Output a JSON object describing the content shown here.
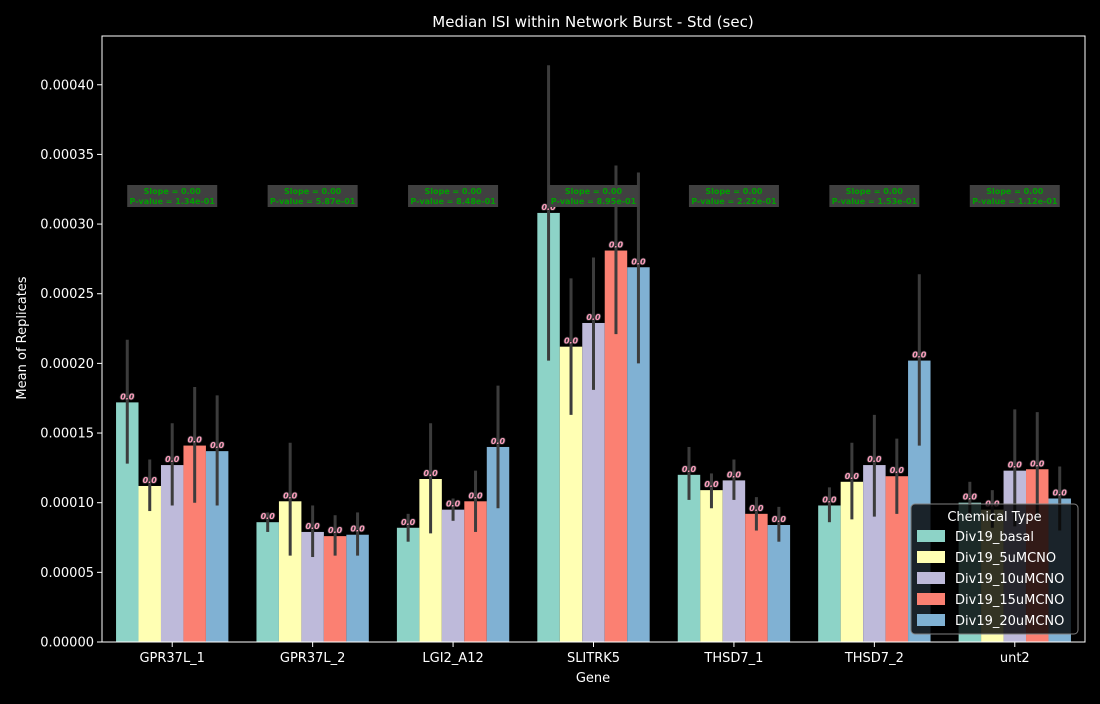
{
  "chart_data": {
    "type": "bar",
    "title": "Median ISI within Network Burst - Std (sec)",
    "xlabel": "Gene",
    "ylabel": "Mean of Replicates",
    "ylim": [
      0,
      0.000435
    ],
    "yticks": [
      "0.00000",
      "0.00005",
      "0.00010",
      "0.00015",
      "0.00020",
      "0.00025",
      "0.00030",
      "0.00035",
      "0.00040"
    ],
    "grid": false,
    "categories": [
      "GPR37L_1",
      "GPR37L_2",
      "LGI2_A12",
      "SLITRK5",
      "THSD7_1",
      "THSD7_2",
      "unt2"
    ],
    "legend": {
      "title": "Chemical Type",
      "position": "lower-right"
    },
    "bar_label": "0.0",
    "series": [
      {
        "name": "Div19_basal",
        "color": "#8dd3c7",
        "values": [
          0.000172,
          8.6e-05,
          8.2e-05,
          0.000308,
          0.00012,
          9.8e-05,
          0.0001
        ],
        "err_low": [
          0.000128,
          7.9e-05,
          7.2e-05,
          0.000202,
          0.000102,
          8.6e-05,
          8.7e-05
        ],
        "err_high": [
          0.000217,
          9.3e-05,
          9.2e-05,
          0.000414,
          0.00014,
          0.000111,
          0.000115
        ]
      },
      {
        "name": "Div19_5uMCNO",
        "color": "#ffffb3",
        "values": [
          0.000112,
          0.000101,
          0.000117,
          0.000212,
          0.000109,
          0.000115,
          9.5e-05
        ],
        "err_low": [
          9.4e-05,
          6.2e-05,
          7.8e-05,
          0.000163,
          9.6e-05,
          8.8e-05,
          8.2e-05
        ],
        "err_high": [
          0.000131,
          0.000143,
          0.000157,
          0.000261,
          0.000121,
          0.000143,
          0.000109
        ]
      },
      {
        "name": "Div19_10uMCNO",
        "color": "#bebada",
        "values": [
          0.000127,
          7.9e-05,
          9.5e-05,
          0.000229,
          0.000116,
          0.000127,
          0.000123
        ],
        "err_low": [
          9.8e-05,
          6.1e-05,
          8.7e-05,
          0.000181,
          0.000102,
          9e-05,
          8.3e-05
        ],
        "err_high": [
          0.000157,
          9.8e-05,
          0.000103,
          0.000276,
          0.000131,
          0.000163,
          0.000167
        ]
      },
      {
        "name": "Div19_15uMCNO",
        "color": "#fb8072",
        "values": [
          0.000141,
          7.6e-05,
          0.000101,
          0.000281,
          9.2e-05,
          0.000119,
          0.000124
        ],
        "err_low": [
          0.0001,
          6.2e-05,
          7.9e-05,
          0.000221,
          8e-05,
          9.2e-05,
          8.7e-05
        ],
        "err_high": [
          0.000183,
          9.1e-05,
          0.000123,
          0.000342,
          0.000104,
          0.000146,
          0.000165
        ]
      },
      {
        "name": "Div19_20uMCNO",
        "color": "#80b1d3",
        "values": [
          0.000137,
          7.7e-05,
          0.00014,
          0.000269,
          8.4e-05,
          0.000202,
          0.000103
        ],
        "err_low": [
          9.8e-05,
          6.2e-05,
          9.6e-05,
          0.0002,
          7.2e-05,
          0.000141,
          8e-05
        ],
        "err_high": [
          0.000177,
          9.3e-05,
          0.000184,
          0.000337,
          9.7e-05,
          0.000264,
          0.000126
        ]
      }
    ],
    "annotations": [
      {
        "line1": "Slope = 0.00",
        "line2": "P-value = 1.34e-01"
      },
      {
        "line1": "Slope = 0.00",
        "line2": "P-value = 5.87e-01"
      },
      {
        "line1": "Slope = 0.00",
        "line2": "P-value = 8.48e-01"
      },
      {
        "line1": "Slope = 0.00",
        "line2": "P-value = 8.95e-01"
      },
      {
        "line1": "Slope = 0.00",
        "line2": "P-value = 2.22e-01"
      },
      {
        "line1": "Slope = 0.00",
        "line2": "P-value = 1.53e-01"
      },
      {
        "line1": "Slope = 0.00",
        "line2": "P-value = 1.12e-01"
      }
    ]
  }
}
